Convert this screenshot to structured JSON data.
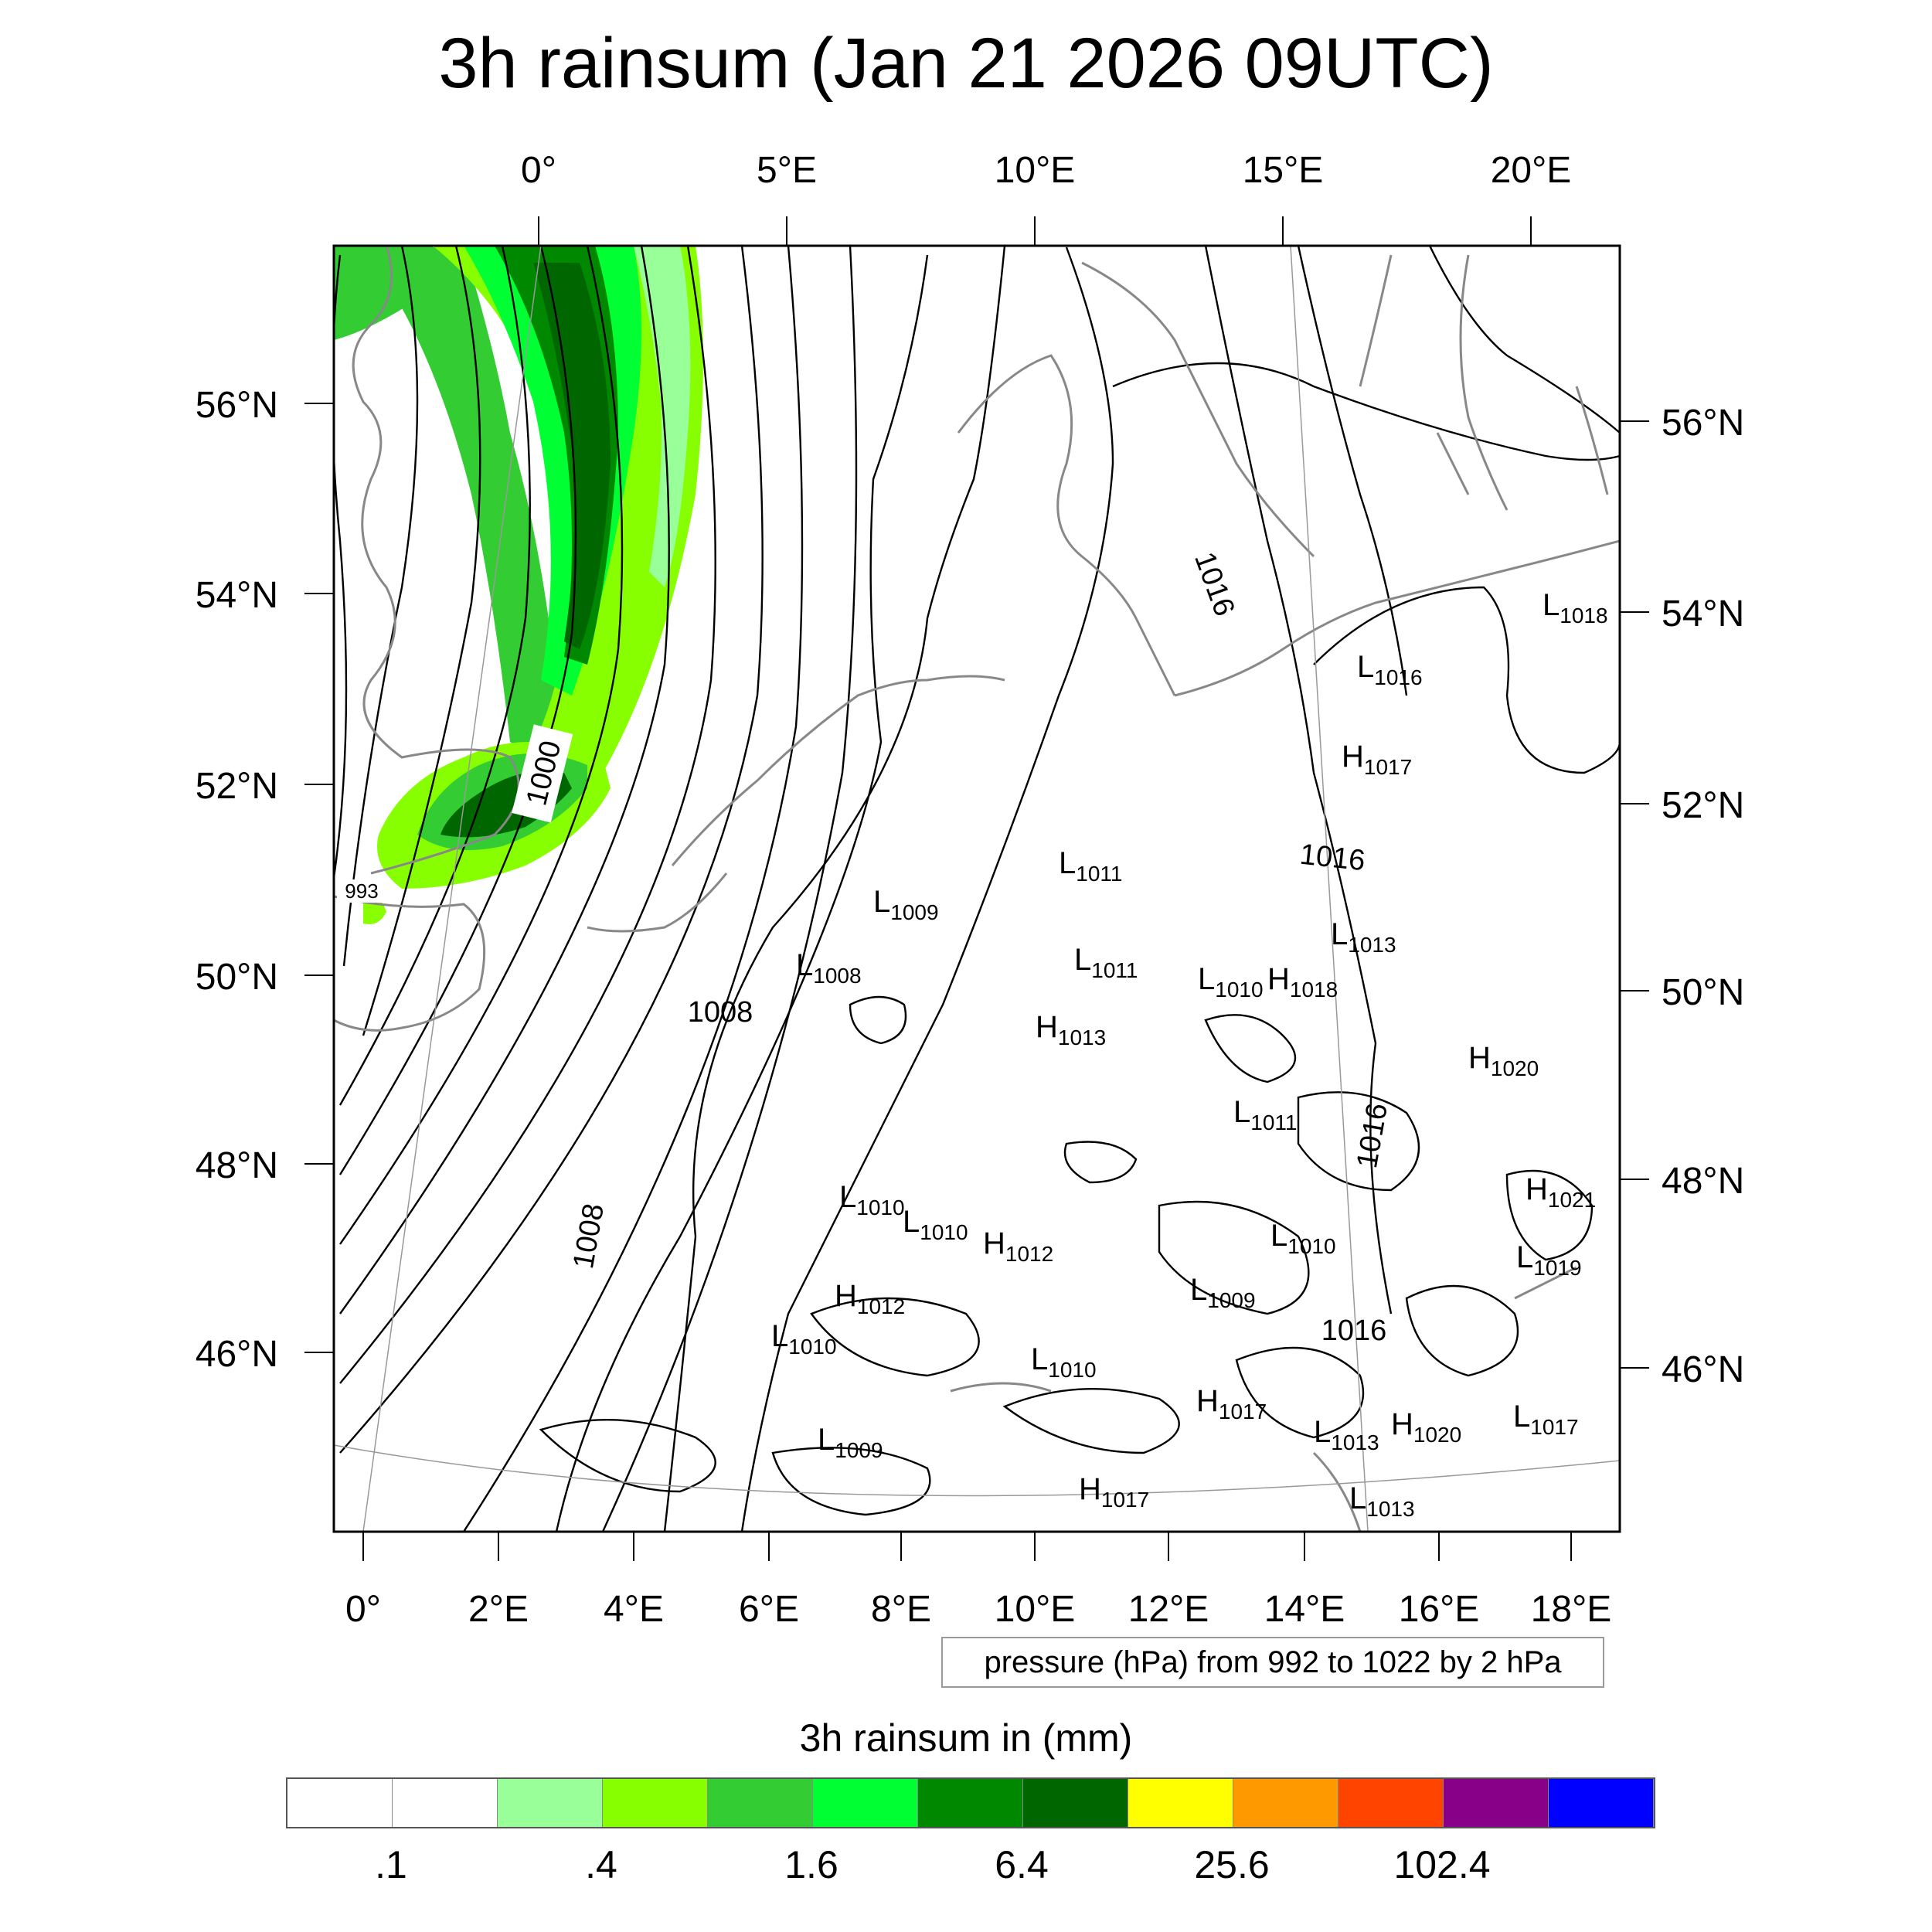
{
  "title": "3h rainsum (Jan 21 2026 09UTC)",
  "top_axis": [
    "0°",
    "5°E",
    "10°E",
    "15°E",
    "20°E"
  ],
  "bottom_axis": [
    "0°",
    "2°E",
    "4°E",
    "6°E",
    "8°E",
    "10°E",
    "12°E",
    "14°E",
    "16°E",
    "18°E"
  ],
  "left_axis": [
    "56°N",
    "54°N",
    "52°N",
    "50°N",
    "48°N",
    "46°N"
  ],
  "right_axis": [
    "56°N",
    "54°N",
    "52°N",
    "50°N",
    "48°N",
    "46°N"
  ],
  "contour_labels": [
    "1000",
    "1008",
    "1008",
    "1016",
    "1016",
    "1016",
    "1016",
    "993"
  ],
  "pressure_centers": [
    {
      "type": "L",
      "value": "1011"
    },
    {
      "type": "L",
      "value": "1009"
    },
    {
      "type": "L",
      "value": "1008"
    },
    {
      "type": "L",
      "value": "1011"
    },
    {
      "type": "H",
      "value": "1013"
    },
    {
      "type": "L",
      "value": "1010"
    },
    {
      "type": "H",
      "value": "1018"
    },
    {
      "type": "L",
      "value": "1013"
    },
    {
      "type": "H",
      "value": "1017"
    },
    {
      "type": "L",
      "value": "1016"
    },
    {
      "type": "L",
      "value": "1018"
    },
    {
      "type": "H",
      "value": "1020"
    },
    {
      "type": "L",
      "value": "1011"
    },
    {
      "type": "H",
      "value": "1021"
    },
    {
      "type": "L",
      "value": "1019"
    },
    {
      "type": "L",
      "value": "1010"
    },
    {
      "type": "L",
      "value": "1010"
    },
    {
      "type": "H",
      "value": "1012"
    },
    {
      "type": "L",
      "value": "1010"
    },
    {
      "type": "L",
      "value": "1009"
    },
    {
      "type": "H",
      "value": "1012"
    },
    {
      "type": "L",
      "value": "1010"
    },
    {
      "type": "L",
      "value": "1010"
    },
    {
      "type": "H",
      "value": "1017"
    },
    {
      "type": "L",
      "value": "1013"
    },
    {
      "type": "H",
      "value": "1020"
    },
    {
      "type": "L",
      "value": "1017"
    },
    {
      "type": "L",
      "value": "1009"
    },
    {
      "type": "H",
      "value": "1017"
    },
    {
      "type": "L",
      "value": "1013"
    }
  ],
  "note": "pressure (hPa) from 992 to 1022 by 2 hPa",
  "colorbar": {
    "title": "3h rainsum in (mm)",
    "colors": [
      "#ffffff",
      "#ffffff",
      "#99ff99",
      "#88ff00",
      "#33cc33",
      "#00ff33",
      "#008800",
      "#006600",
      "#ffff00",
      "#ff9900",
      "#ff4400",
      "#880088",
      "#0000ff"
    ],
    "labels": [
      ".1",
      ".4",
      "1.6",
      "6.4",
      "25.6",
      "102.4"
    ]
  }
}
